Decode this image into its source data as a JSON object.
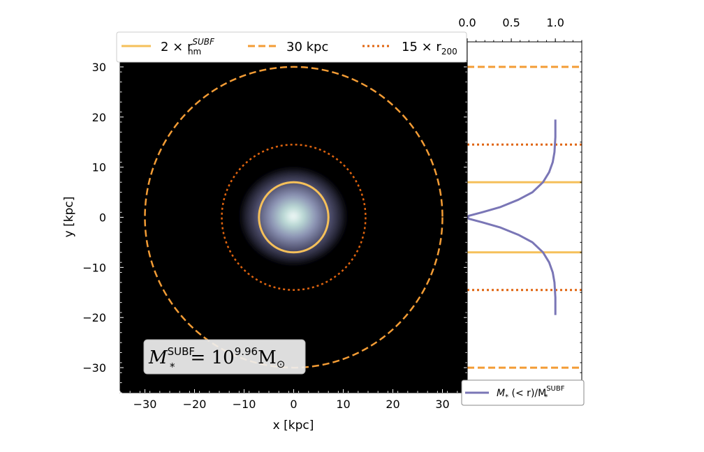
{
  "colors": {
    "hm_radius": "#f5c05a",
    "aperture_30kpc": "#f39c35",
    "r200_radius": "#e0640f",
    "cumulative_profile": "#7a76b6",
    "background": "#000000"
  },
  "chart_data": [
    {
      "type": "image",
      "xlabel": "x [kpc]",
      "ylabel": "y [kpc]",
      "xlim": [
        -35,
        35
      ],
      "ylim": [
        -35,
        35
      ],
      "xticks": [
        -30,
        -20,
        -10,
        0,
        10,
        20,
        30
      ],
      "yticks": [
        -30,
        -20,
        -10,
        0,
        10,
        20,
        30
      ],
      "xtick_labels": [
        "−30",
        "−20",
        "−10",
        "0",
        "10",
        "20",
        "30"
      ],
      "ytick_labels": [
        "−30",
        "−20",
        "−10",
        "0",
        "10",
        "20",
        "30"
      ],
      "circles": [
        {
          "name": "2 × r_hm^SUBF",
          "radius": 7,
          "style": "solid"
        },
        {
          "name": "30 kpc",
          "radius": 30,
          "style": "dashed"
        },
        {
          "name": "15 × r200",
          "radius": 14.5,
          "style": "dotted"
        }
      ],
      "legend": {
        "placement": "top",
        "entries": [
          {
            "main": "2 × r",
            "sup": "SUBF",
            "sub": "hm",
            "style": "solid"
          },
          {
            "main": "30 kpc",
            "style": "dashed"
          },
          {
            "main": "15 × r",
            "sub": "200",
            "style": "dotted"
          }
        ]
      },
      "annotation": {
        "main": "M",
        "sup": "SUBF",
        "sub": "*",
        "equals": "= 10",
        "exponent": "9.96",
        "unit": "M",
        "unit_sub": "⊙"
      }
    },
    {
      "type": "line",
      "xlim": [
        0,
        1.3
      ],
      "xticks": [
        0.0,
        0.5,
        1.0
      ],
      "xtick_labels": [
        "0.0",
        "0.5",
        "1.0"
      ],
      "ylim": [
        -35,
        35
      ],
      "series": [
        {
          "name": "M*(<r)/M*^SUBF",
          "x": [
            1.0,
            1.0,
            0.99,
            0.97,
            0.93,
            0.86,
            0.74,
            0.58,
            0.37,
            0.17,
            0.02,
            0.0,
            0.02,
            0.17,
            0.37,
            0.58,
            0.74,
            0.86,
            0.93,
            0.97,
            0.99,
            1.0,
            1.0
          ],
          "y": [
            19.5,
            16,
            13,
            11,
            9,
            7,
            5,
            3.5,
            2,
            1,
            0.3,
            0,
            -0.3,
            -1,
            -2,
            -3.5,
            -5,
            -7,
            -9,
            -11,
            -13,
            -16,
            -19.5
          ]
        }
      ],
      "hlines": [
        {
          "y": 30,
          "style": "dashed"
        },
        {
          "y": -30,
          "style": "dashed"
        },
        {
          "y": 14.5,
          "style": "dotted"
        },
        {
          "y": -14.5,
          "style": "dotted"
        },
        {
          "y": 7,
          "style": "solid"
        },
        {
          "y": -7,
          "style": "solid"
        }
      ],
      "legend": {
        "placement": "bottom",
        "main": "M",
        "sub": "*",
        "mid": " (< r)/M",
        "sub2": "*",
        "sup2": "SUBF"
      }
    }
  ]
}
